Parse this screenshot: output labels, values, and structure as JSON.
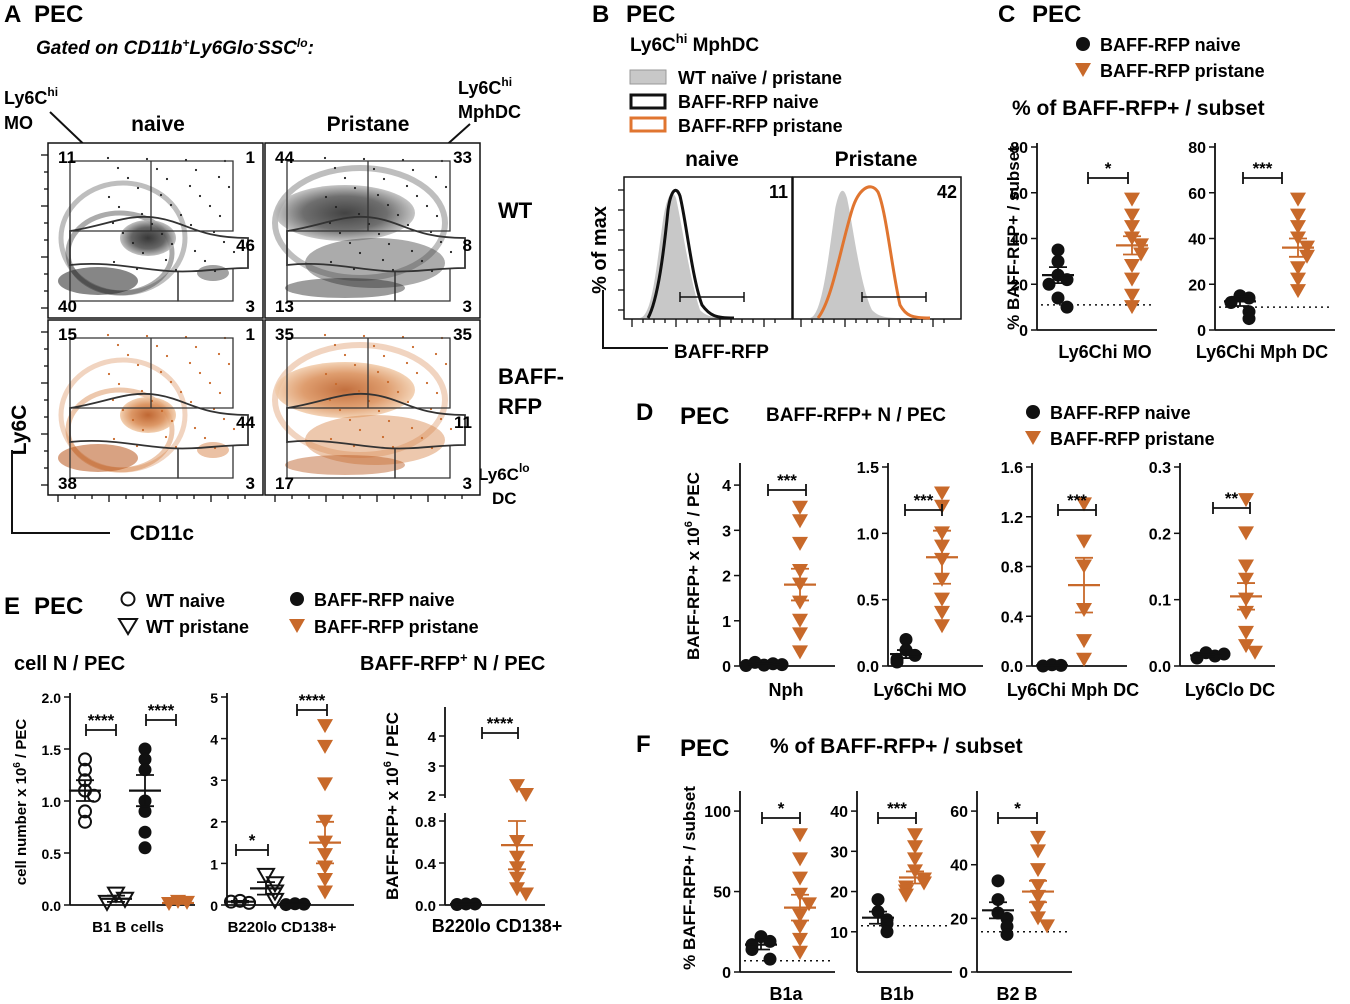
{
  "figure": {
    "colors": {
      "naive": "#111111",
      "pristane": "#C8692A",
      "gray": "#c8c8c8",
      "contour_gray": "#444444",
      "contour_orange": "#D7844A"
    },
    "panelA": {
      "letter": "A",
      "pec": "PEC",
      "gating": "Gated on CD11b",
      "gating_sup1": "+",
      "gating_mid": "Ly6Glo",
      "gating_sup2": "-",
      "gating_mid2": "SSC",
      "gating_sup3": "lo",
      "gating_end": ":",
      "col_naive": "naive",
      "col_pristane": "Pristane",
      "row_wt": "WT",
      "row_baff1": "BAFF-",
      "row_baff2": "RFP",
      "ylabel": "Ly6C",
      "xlabel": "CD11c",
      "ann_mo1": "Ly6C",
      "ann_mo_sup": "hi",
      "ann_mo2": "MO",
      "ann_mph1": "Ly6C",
      "ann_mph_sup": "hi",
      "ann_mph2": "MphDC",
      "ann_dc1": "Ly6C",
      "ann_dc_sup": "lo",
      "ann_dc2": "DC",
      "quads": {
        "wt_naive": [
          "11",
          "1",
          "46",
          "40",
          "3"
        ],
        "wt_pristane": [
          "44",
          "33",
          "8",
          "13",
          "3"
        ],
        "baff_naive": [
          "15",
          "1",
          "44",
          "38",
          "3"
        ],
        "baff_pristane": [
          "35",
          "35",
          "11",
          "17",
          "3"
        ]
      }
    },
    "panelB": {
      "letter": "B",
      "pec": "PEC",
      "subtitle": "Ly6C",
      "subtitle_sup": "hi",
      "subtitle_end": " MphDC",
      "legend": [
        "WT naïve / pristane",
        "BAFF-RFP naive",
        "BAFF-RFP pristane"
      ],
      "col_naive": "naive",
      "col_pristane": "Pristane",
      "ylabel": "% of max",
      "xlabel": "BAFF-RFP",
      "pct_naive": "11",
      "pct_pristane": "42"
    },
    "panelC": {
      "letter": "C",
      "pec": "PEC",
      "legend": [
        "BAFF-RFP naive",
        "BAFF-RFP pristane"
      ],
      "title": "% of BAFF-RFP+ / subset",
      "ylabel": "% BAFF-RFP+ / subset",
      "plots": [
        {
          "xlabel": "Ly6Chi MO",
          "sig": "*",
          "ticks": [
            "0",
            "20",
            "40",
            "60",
            "80"
          ]
        },
        {
          "xlabel": "Ly6Chi Mph DC",
          "sig": "***",
          "ticks": [
            "0",
            "20",
            "40",
            "60",
            "80"
          ]
        }
      ]
    },
    "panelD": {
      "letter": "D",
      "pec": "PEC",
      "title": "BAFF-RFP+ N / PEC",
      "legend": [
        "BAFF-RFP naive",
        "BAFF-RFP pristane"
      ],
      "ylabel": "BAFF-RFP+ x 10",
      "ylabel_sup": "6",
      "ylabel_end": " / PEC",
      "plots": [
        {
          "xlabel": "Nph",
          "sig": "***",
          "ticks": [
            "0",
            "1",
            "2",
            "3",
            "4"
          ]
        },
        {
          "xlabel": "Ly6Chi MO",
          "sig": "***",
          "ticks": [
            "0.0",
            "0.5",
            "1.0",
            "1.5"
          ]
        },
        {
          "xlabel": "Ly6Chi Mph DC",
          "sig": "***",
          "ticks": [
            "0.0",
            "0.4",
            "0.8",
            "1.2",
            "1.6"
          ]
        },
        {
          "xlabel": "Ly6Clo DC",
          "sig": "**",
          "ticks": [
            "0.0",
            "0.1",
            "0.2",
            "0.3"
          ]
        }
      ]
    },
    "panelE": {
      "letter": "E",
      "pec": "PEC",
      "legend": [
        "WT naive",
        "WT pristane",
        "BAFF-RFP naive",
        "BAFF-RFP pristane"
      ],
      "sub_left": "cell N / PEC",
      "sub_right": "BAFF-RFP",
      "sub_right_sup": "+",
      "sub_right_end": " N / PEC",
      "ylabel_left": "cell number x 10",
      "ylabel_left_sup": "6",
      "ylabel_left_end": " / PEC",
      "ylabel_right": "BAFF-RFP+ x 10",
      "ylabel_right_sup": "6",
      "ylabel_right_end": " / PEC",
      "plot1": {
        "xlabel": "B1 B cells",
        "sig1": "****",
        "sig2": "****",
        "ticks": [
          "0.0",
          "0.5",
          "1.0",
          "1.5",
          "2.0"
        ]
      },
      "plot2": {
        "xlabel": "B220lo CD138+",
        "sig1": "*",
        "sig2": "****",
        "ticks": [
          "0",
          "1",
          "2",
          "3",
          "4",
          "5"
        ]
      },
      "plot3": {
        "xlabel": "B220lo CD138+",
        "sig": "****",
        "ticks_low": [
          "0.0",
          "0.4",
          "0.8"
        ],
        "ticks_high": [
          "2",
          "3",
          "4"
        ]
      }
    },
    "panelF": {
      "letter": "F",
      "pec": "PEC",
      "title": "% of BAFF-RFP+ / subset",
      "ylabel": "% BAFF-RFP+ / subset",
      "plots": [
        {
          "xlabel": "B1a",
          "sig": "*",
          "ticks": [
            "0",
            "50",
            "100"
          ]
        },
        {
          "xlabel": "B1b",
          "sig": "***",
          "ticks": [
            "10",
            "20",
            "30",
            "40"
          ]
        },
        {
          "xlabel": "B2 B",
          "sig": "*",
          "ticks": [
            "0",
            "20",
            "40",
            "60"
          ]
        }
      ]
    }
  },
  "chart_data": [
    {
      "type": "scatter",
      "title": "% of BAFF-RFP+ / subset (C) - Ly6Chi MO",
      "ylabel": "% BAFF-RFP+ / subset",
      "ylim": [
        0,
        80
      ],
      "series": [
        {
          "name": "BAFF-RFP naive",
          "values": [
            24,
            35,
            30,
            22,
            20,
            14,
            10
          ],
          "mean": 24,
          "sem": 3.5
        },
        {
          "name": "BAFF-RFP pristane",
          "values": [
            57,
            50,
            45,
            40,
            37,
            33,
            28,
            22,
            15,
            10
          ],
          "mean": 37,
          "sem": 4
        }
      ],
      "threshold": 11
    },
    {
      "type": "scatter",
      "title": "% of BAFF-RFP+ / subset (C) - Ly6Chi Mph DC",
      "ylabel": "% BAFF-RFP+ / subset",
      "ylim": [
        0,
        80
      ],
      "series": [
        {
          "name": "BAFF-RFP naive",
          "values": [
            15,
            14,
            12,
            8,
            5
          ],
          "mean": 12.5,
          "sem": 2
        },
        {
          "name": "BAFF-RFP pristane",
          "values": [
            57,
            50,
            45,
            40,
            36,
            32,
            27,
            22,
            17
          ],
          "mean": 36,
          "sem": 4
        }
      ],
      "threshold": 10
    },
    {
      "type": "scatter",
      "title": "BAFF-RFP+ N / PEC (D) - Nph",
      "ylabel": "BAFF-RFP+ x 10^6 / PEC",
      "ylim": [
        0,
        4.4
      ],
      "series": [
        {
          "name": "BAFF-RFP naive",
          "values": [
            0.02,
            0.05,
            0.08,
            0.03,
            0.01
          ],
          "mean": 0.04,
          "sem": 0.02
        },
        {
          "name": "BAFF-RFP pristane",
          "values": [
            3.5,
            3.2,
            2.7,
            2.1,
            1.8,
            1.4,
            1.0,
            0.7,
            0.3
          ],
          "mean": 1.8,
          "sem": 0.35
        }
      ]
    },
    {
      "type": "scatter",
      "title": "BAFF-RFP+ N / PEC (D) - Ly6Chi MO",
      "ylabel": "BAFF-RFP+ x 10^6 / PEC",
      "ylim": [
        0,
        1.5
      ],
      "series": [
        {
          "name": "BAFF-RFP naive",
          "values": [
            0.2,
            0.12,
            0.08,
            0.05,
            0.03
          ],
          "mean": 0.09,
          "sem": 0.03
        },
        {
          "name": "BAFF-RFP pristane",
          "values": [
            1.3,
            1.2,
            1.0,
            0.9,
            0.8,
            0.65,
            0.5,
            0.4,
            0.3
          ],
          "mean": 0.82,
          "sem": 0.2
        }
      ]
    },
    {
      "type": "scatter",
      "title": "BAFF-RFP+ N / PEC (D) - Ly6Chi Mph DC",
      "ylabel": "BAFF-RFP+ x 10^6 / PEC",
      "ylim": [
        0,
        1.6
      ],
      "series": [
        {
          "name": "BAFF-RFP naive",
          "values": [
            0.01,
            0.005,
            0.0
          ],
          "mean": 0.005,
          "sem": 0.003
        },
        {
          "name": "BAFF-RFP pristane",
          "values": [
            1.3,
            1.0,
            0.8,
            0.45,
            0.2,
            0.05
          ],
          "mean": 0.65,
          "sem": 0.22
        }
      ]
    },
    {
      "type": "scatter",
      "title": "BAFF-RFP+ N / PEC (D) - Ly6Clo DC",
      "ylabel": "BAFF-RFP+ x 10^6 / PEC",
      "ylim": [
        0,
        0.3
      ],
      "series": [
        {
          "name": "BAFF-RFP naive",
          "values": [
            0.02,
            0.015,
            0.012,
            0.018
          ],
          "mean": 0.016,
          "sem": 0.002
        },
        {
          "name": "BAFF-RFP pristane",
          "values": [
            0.25,
            0.2,
            0.15,
            0.13,
            0.1,
            0.08,
            0.05,
            0.03,
            0.02
          ],
          "mean": 0.105,
          "sem": 0.02
        }
      ]
    },
    {
      "type": "scatter",
      "title": "cell N / PEC (E) - B1 B cells",
      "ylabel": "cell number x 10^6 / PEC",
      "ylim": [
        0,
        2.0
      ],
      "series": [
        {
          "name": "WT naive",
          "values": [
            1.4,
            1.3,
            1.2,
            1.1,
            1.05,
            0.9,
            0.8
          ],
          "mean": 1.1,
          "sem": 0.1
        },
        {
          "name": "WT pristane",
          "values": [
            0.1,
            0.05,
            0.02
          ],
          "mean": 0.06,
          "sem": 0.03
        },
        {
          "name": "BAFF-RFP naive",
          "values": [
            1.5,
            1.4,
            1.3,
            1.0,
            0.9,
            0.7,
            0.55
          ],
          "mean": 1.1,
          "sem": 0.15
        },
        {
          "name": "BAFF-RFP pristane",
          "values": [
            0.03,
            0.02,
            0.01
          ],
          "mean": 0.02,
          "sem": 0.01
        }
      ]
    },
    {
      "type": "scatter",
      "title": "cell N / PEC (E) - B220lo CD138+",
      "ylabel": "cell number x 10^6 / PEC",
      "ylim": [
        0,
        5
      ],
      "series": [
        {
          "name": "WT naive",
          "values": [
            0.1,
            0.05,
            0.08
          ],
          "mean": 0.08,
          "sem": 0.02
        },
        {
          "name": "WT pristane",
          "values": [
            0.7,
            0.5,
            0.3,
            0.1
          ],
          "mean": 0.4,
          "sem": 0.15
        },
        {
          "name": "BAFF-RFP naive",
          "values": [
            0.03,
            0.02,
            0.01
          ],
          "mean": 0.02,
          "sem": 0.01
        },
        {
          "name": "BAFF-RFP pristane",
          "values": [
            4.3,
            3.8,
            2.9,
            2.0,
            1.5,
            1.2,
            0.9,
            0.6,
            0.3
          ],
          "mean": 1.5,
          "sem": 0.5
        }
      ]
    },
    {
      "type": "scatter",
      "title": "BAFF-RFP+ N / PEC (E) - B220lo CD138+",
      "ylabel": "BAFF-RFP+ x 10^6 / PEC",
      "ylim": [
        0,
        4
      ],
      "series": [
        {
          "name": "BAFF-RFP naive",
          "values": [
            0.01,
            0.01,
            0.005
          ],
          "mean": 0.01,
          "sem": 0.003
        },
        {
          "name": "BAFF-RFP pristane",
          "values": [
            2.3,
            2.0,
            0.6,
            0.45,
            0.35,
            0.25,
            0.15,
            0.1
          ],
          "mean": 0.57,
          "sem": 0.23
        }
      ]
    },
    {
      "type": "scatter",
      "title": "% of BAFF-RFP+ / subset (F) - B1a",
      "ylabel": "% BAFF-RFP+ / subset",
      "ylim": [
        0,
        110
      ],
      "series": [
        {
          "name": "BAFF-RFP naive",
          "values": [
            22,
            19,
            17,
            14,
            8
          ],
          "mean": 17,
          "sem": 3
        },
        {
          "name": "BAFF-RFP pristane",
          "values": [
            85,
            70,
            58,
            48,
            42,
            35,
            28,
            20,
            12
          ],
          "mean": 40,
          "sem": 8
        }
      ],
      "threshold": 7
    },
    {
      "type": "scatter",
      "title": "% of BAFF-RFP+ / subset (F) - B1b",
      "ylabel": "% BAFF-RFP+ / subset",
      "ylim": [
        0,
        44
      ],
      "series": [
        {
          "name": "BAFF-RFP naive",
          "values": [
            18,
            15,
            13,
            12,
            10
          ],
          "mean": 13.5,
          "sem": 1.5
        },
        {
          "name": "BAFF-RFP pristane",
          "values": [
            34,
            31,
            28,
            25,
            23,
            22,
            21,
            20,
            19
          ],
          "mean": 23.5,
          "sem": 1.5
        }
      ],
      "threshold": 11.5
    },
    {
      "type": "scatter",
      "title": "% of BAFF-RFP+ / subset (F) - B2 B",
      "ylabel": "% BAFF-RFP+ / subset",
      "ylim": [
        0,
        66
      ],
      "series": [
        {
          "name": "BAFF-RFP naive",
          "values": [
            34,
            27,
            22,
            20,
            17,
            14
          ],
          "mean": 23,
          "sem": 3
        },
        {
          "name": "BAFF-RFP pristane",
          "values": [
            50,
            45,
            38,
            32,
            28,
            24,
            20,
            17
          ],
          "mean": 30,
          "sem": 4
        }
      ],
      "threshold": 15
    }
  ]
}
